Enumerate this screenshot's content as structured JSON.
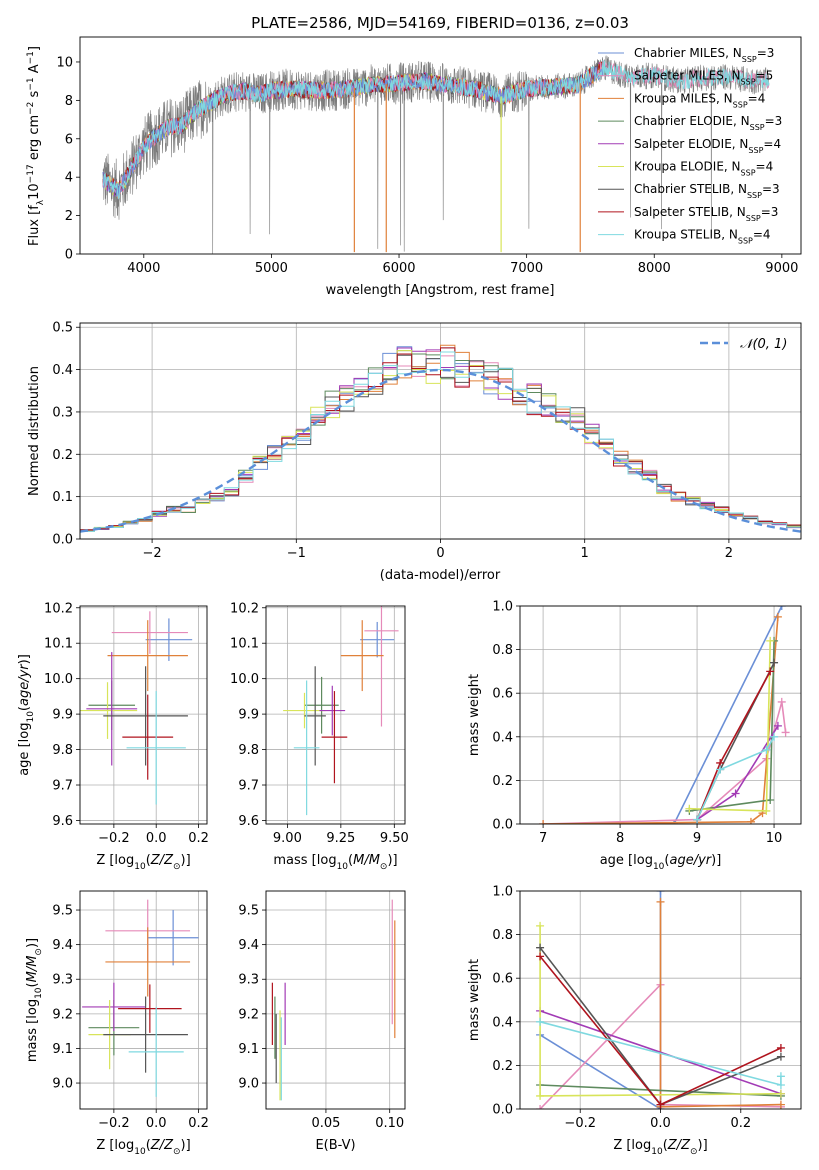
{
  "title": "PLATE=2586, MJD=54169, FIBERID=0136, z=0.03",
  "colors": {
    "chabrier_miles": "#6b8fd6",
    "salpeter_miles": "#e58ab9",
    "kroupa_miles": "#e0813a",
    "chabrier_elodie": "#5e8a5e",
    "salpeter_elodie": "#a23bb5",
    "kroupa_elodie": "#d8e45a",
    "chabrier_stelib": "#555555",
    "salpeter_stelib": "#b0141e",
    "kroupa_stelib": "#7fd9e0",
    "normal_curve": "#5b8fd9"
  },
  "chart_data": [
    {
      "type": "line",
      "xlabel": "wavelength [Angstrom, rest frame]",
      "ylabel": "Flux [f_λ10^-17 erg cm^-2 s^-1 A^-1]",
      "xlim": [
        3500,
        9150
      ],
      "ylim": [
        0,
        11.3
      ],
      "xticks": [
        4000,
        5000,
        6000,
        7000,
        8000,
        9000
      ],
      "yticks": [
        0,
        2,
        4,
        6,
        8,
        10
      ],
      "grid": false,
      "legend_position": "top-right",
      "legend": [
        {
          "label": "Chabrier MILES, N",
          "sub": "SSP",
          "suffix": "=3",
          "color_key": "chabrier_miles"
        },
        {
          "label": "Salpeter MILES, N",
          "sub": "SSP",
          "suffix": "=5",
          "color_key": "salpeter_miles"
        },
        {
          "label": "Kroupa MILES, N",
          "sub": "SSP",
          "suffix": "=4",
          "color_key": "kroupa_miles"
        },
        {
          "label": "Chabrier ELODIE, N",
          "sub": "SSP",
          "suffix": "=3",
          "color_key": "chabrier_elodie"
        },
        {
          "label": "Salpeter ELODIE, N",
          "sub": "SSP",
          "suffix": "=4",
          "color_key": "salpeter_elodie"
        },
        {
          "label": "Kroupa ELODIE, N",
          "sub": "SSP",
          "suffix": "=4",
          "color_key": "kroupa_elodie"
        },
        {
          "label": "Chabrier STELIB, N",
          "sub": "SSP",
          "suffix": "=3",
          "color_key": "chabrier_stelib"
        },
        {
          "label": "Salpeter STELIB, N",
          "sub": "SSP",
          "suffix": "=3",
          "color_key": "salpeter_stelib"
        },
        {
          "label": "Kroupa STELIB, N",
          "sub": "SSP",
          "suffix": "=4",
          "color_key": "kroupa_stelib"
        }
      ],
      "continuum": [
        [
          3680,
          3.9
        ],
        [
          3800,
          3.3
        ],
        [
          3900,
          4.4
        ],
        [
          4000,
          5.6
        ],
        [
          4100,
          6.2
        ],
        [
          4200,
          6.6
        ],
        [
          4300,
          6.7
        ],
        [
          4400,
          7.4
        ],
        [
          4500,
          7.8
        ],
        [
          4600,
          8.2
        ],
        [
          4700,
          8.4
        ],
        [
          4800,
          8.5
        ],
        [
          4900,
          8.3
        ],
        [
          5000,
          8.5
        ],
        [
          5200,
          8.6
        ],
        [
          5400,
          8.5
        ],
        [
          5600,
          8.6
        ],
        [
          5800,
          8.8
        ],
        [
          6000,
          8.9
        ],
        [
          6200,
          9.0
        ],
        [
          6400,
          8.8
        ],
        [
          6600,
          8.6
        ],
        [
          6800,
          8.2
        ],
        [
          7000,
          8.6
        ],
        [
          7200,
          8.7
        ],
        [
          7400,
          8.8
        ],
        [
          7600,
          9.7
        ],
        [
          7800,
          9.2
        ],
        [
          8000,
          9.3
        ],
        [
          8200,
          9.0
        ],
        [
          8400,
          9.2
        ],
        [
          8600,
          9.2
        ],
        [
          8800,
          9.0
        ],
        [
          8900,
          9.0
        ]
      ],
      "model_range": [
        3680,
        7600
      ]
    },
    {
      "type": "bar",
      "xlabel": "(data-model)/error",
      "ylabel": "Normed distribution",
      "xlim": [
        -2.5,
        2.5
      ],
      "ylim": [
        0,
        0.51
      ],
      "xticks": [
        -2,
        -1,
        0,
        1,
        2
      ],
      "yticks": [
        0.0,
        0.1,
        0.2,
        0.3,
        0.4,
        0.5
      ],
      "grid": true,
      "legend_position": "top-right",
      "legend_label": "𝒩(0, 1)",
      "bin_edges": [
        -2.5,
        -2.4,
        -2.3,
        -2.2,
        -2.1,
        -2.0,
        -1.9,
        -1.8,
        -1.7,
        -1.6,
        -1.5,
        -1.4,
        -1.3,
        -1.2,
        -1.1,
        -1.0,
        -0.9,
        -0.8,
        -0.7,
        -0.6,
        -0.5,
        -0.4,
        -0.3,
        -0.2,
        -0.1,
        0.0,
        0.1,
        0.2,
        0.3,
        0.4,
        0.5,
        0.6,
        0.7,
        0.8,
        0.9,
        1.0,
        1.1,
        1.2,
        1.3,
        1.4,
        1.5,
        1.6,
        1.7,
        1.8,
        1.9,
        2.0,
        2.1,
        2.2,
        2.3,
        2.4,
        2.5
      ],
      "histogram_base": [
        0.02,
        0.025,
        0.03,
        0.04,
        0.045,
        0.06,
        0.07,
        0.07,
        0.09,
        0.1,
        0.11,
        0.15,
        0.18,
        0.2,
        0.22,
        0.25,
        0.3,
        0.32,
        0.33,
        0.35,
        0.38,
        0.41,
        0.42,
        0.41,
        0.41,
        0.42,
        0.4,
        0.4,
        0.38,
        0.37,
        0.34,
        0.33,
        0.32,
        0.3,
        0.29,
        0.25,
        0.22,
        0.19,
        0.17,
        0.15,
        0.12,
        0.1,
        0.09,
        0.08,
        0.07,
        0.06,
        0.05,
        0.04,
        0.035,
        0.03
      ],
      "normal_curve": {
        "mean": 0,
        "sigma": 1
      }
    },
    {
      "type": "scatter",
      "xlabel": "Z [log10(Z/Z⊙)]",
      "ylabel": "age  [log10(age/yr)]",
      "xlim": [
        -0.36,
        0.24
      ],
      "ylim": [
        9.59,
        10.205
      ],
      "xticks": [
        -0.2,
        0.0,
        0.2
      ],
      "xticklabels": [
        "−0.2",
        "0.0",
        "0.2"
      ],
      "yticks": [
        9.6,
        9.7,
        9.8,
        9.9,
        10.0,
        10.1,
        10.2
      ],
      "grid": true,
      "errorbars": [
        {
          "x": 0.06,
          "xerr": 0.11,
          "y": 10.11,
          "yerr": 0.06,
          "color_key": "chabrier_miles"
        },
        {
          "x": -0.03,
          "xerr": 0.18,
          "y": 10.13,
          "yerr": 0.06,
          "color_key": "salpeter_miles"
        },
        {
          "x": -0.04,
          "xerr": 0.19,
          "y": 10.065,
          "yerr": 0.1,
          "color_key": "kroupa_miles"
        },
        {
          "x": -0.21,
          "xerr": 0.11,
          "y": 9.925,
          "yerr": 0.07,
          "color_key": "chabrier_elodie"
        },
        {
          "x": -0.23,
          "xerr": 0.14,
          "y": 9.91,
          "yerr": 0.08,
          "color_key": "kroupa_elodie"
        },
        {
          "x": -0.21,
          "xerr": 0.12,
          "y": 9.915,
          "yerr": 0.16,
          "color_key": "salpeter_elodie"
        },
        {
          "x": -0.05,
          "xerr": 0.2,
          "y": 9.895,
          "yerr": 0.14,
          "color_key": "chabrier_stelib"
        },
        {
          "x": -0.04,
          "xerr": 0.12,
          "y": 9.835,
          "yerr": 0.12,
          "color_key": "salpeter_stelib"
        },
        {
          "x": 0.0,
          "xerr": 0.14,
          "y": 9.805,
          "yerr": 0.16,
          "color_key": "kroupa_stelib"
        }
      ]
    },
    {
      "type": "scatter",
      "xlabel": "mass [log10(M/M⊙)]",
      "ylabel": "",
      "xlim": [
        8.9,
        9.55
      ],
      "ylim": [
        9.59,
        10.205
      ],
      "xticks": [
        9.0,
        9.25,
        9.5
      ],
      "xticklabels": [
        "9.00",
        "9.25",
        "9.50"
      ],
      "yticks": [
        9.6,
        9.7,
        9.8,
        9.9,
        10.0,
        10.1,
        10.2
      ],
      "grid": true,
      "errorbars": [
        {
          "x": 9.42,
          "xerr": 0.08,
          "y": 10.11,
          "yerr": 0.05,
          "color_key": "chabrier_miles"
        },
        {
          "x": 9.44,
          "xerr": 0.08,
          "y": 10.135,
          "yerr": 0.27,
          "color_key": "salpeter_miles"
        },
        {
          "x": 9.35,
          "xerr": 0.1,
          "y": 10.065,
          "yerr": 0.1,
          "color_key": "kroupa_miles"
        },
        {
          "x": 9.16,
          "xerr": 0.08,
          "y": 9.925,
          "yerr": 0.08,
          "color_key": "chabrier_elodie"
        },
        {
          "x": 9.08,
          "xerr": 0.1,
          "y": 9.91,
          "yerr": 0.05,
          "color_key": "kroupa_elodie"
        },
        {
          "x": 9.21,
          "xerr": 0.06,
          "y": 9.91,
          "yerr": 0.07,
          "color_key": "salpeter_elodie"
        },
        {
          "x": 9.13,
          "xerr": 0.05,
          "y": 9.895,
          "yerr": 0.14,
          "color_key": "chabrier_stelib"
        },
        {
          "x": 9.22,
          "xerr": 0.06,
          "y": 9.835,
          "yerr": 0.13,
          "color_key": "salpeter_stelib"
        },
        {
          "x": 9.09,
          "xerr": 0.06,
          "y": 9.805,
          "yerr": 0.19,
          "color_key": "kroupa_stelib"
        }
      ]
    },
    {
      "type": "line",
      "xlabel": "age  [log10(age/yr)]",
      "ylabel": "mass weight",
      "xlim": [
        6.7,
        10.35
      ],
      "ylim": [
        0,
        1
      ],
      "xticks": [
        7,
        8,
        9,
        10
      ],
      "yticks": [
        0.0,
        0.2,
        0.4,
        0.6,
        0.8,
        1.0
      ],
      "grid": true,
      "series": [
        {
          "color_key": "chabrier_miles",
          "points": [
            [
              8.7,
              0.0
            ],
            [
              10.1,
              1.0
            ]
          ]
        },
        {
          "color_key": "salpeter_miles",
          "points": [
            [
              7.0,
              0.0
            ],
            [
              9.0,
              0.02
            ],
            [
              9.9,
              0.3
            ],
            [
              10.1,
              0.56
            ],
            [
              10.15,
              0.42
            ]
          ]
        },
        {
          "color_key": "kroupa_miles",
          "points": [
            [
              7.0,
              0.0
            ],
            [
              9.7,
              0.01
            ],
            [
              9.85,
              0.05
            ],
            [
              10.05,
              0.95
            ]
          ]
        },
        {
          "color_key": "chabrier_elodie",
          "points": [
            [
              8.9,
              0.06
            ],
            [
              9.95,
              0.11
            ],
            [
              10.0,
              0.84
            ]
          ]
        },
        {
          "color_key": "salpeter_elodie",
          "points": [
            [
              9.0,
              0.02
            ],
            [
              9.5,
              0.14
            ],
            [
              10.05,
              0.45
            ]
          ]
        },
        {
          "color_key": "kroupa_elodie",
          "points": [
            [
              8.9,
              0.07
            ],
            [
              9.9,
              0.06
            ],
            [
              9.95,
              0.84
            ]
          ]
        },
        {
          "color_key": "chabrier_stelib",
          "points": [
            [
              9.0,
              0.02
            ],
            [
              9.3,
              0.25
            ],
            [
              10.0,
              0.74
            ]
          ]
        },
        {
          "color_key": "salpeter_stelib",
          "points": [
            [
              9.0,
              0.02
            ],
            [
              9.3,
              0.28
            ],
            [
              9.95,
              0.7
            ]
          ]
        },
        {
          "color_key": "kroupa_stelib",
          "points": [
            [
              9.0,
              0.02
            ],
            [
              9.3,
              0.25
            ],
            [
              9.9,
              0.34
            ],
            [
              10.0,
              0.4
            ]
          ]
        }
      ]
    },
    {
      "type": "scatter",
      "xlabel": "Z [log10(Z/Z⊙)]",
      "ylabel": "mass [log10(M/M⊙)]",
      "xlim": [
        -0.36,
        0.24
      ],
      "ylim": [
        8.925,
        9.555
      ],
      "xticks": [
        -0.2,
        0.0,
        0.2
      ],
      "xticklabels": [
        "−0.2",
        "0.0",
        "0.2"
      ],
      "yticks": [
        9.0,
        9.1,
        9.2,
        9.3,
        9.4,
        9.5
      ],
      "grid": true,
      "errorbars": [
        {
          "x": 0.08,
          "xerr": 0.12,
          "y": 9.42,
          "yerr": 0.08,
          "color_key": "chabrier_miles"
        },
        {
          "x": -0.04,
          "xerr": 0.2,
          "y": 9.44,
          "yerr": 0.09,
          "color_key": "salpeter_miles"
        },
        {
          "x": -0.04,
          "xerr": 0.2,
          "y": 9.35,
          "yerr": 0.1,
          "color_key": "kroupa_miles"
        },
        {
          "x": -0.2,
          "xerr": 0.12,
          "y": 9.16,
          "yerr": 0.08,
          "color_key": "chabrier_elodie"
        },
        {
          "x": -0.2,
          "xerr": 0.15,
          "y": 9.22,
          "yerr": 0.07,
          "color_key": "salpeter_elodie"
        },
        {
          "x": -0.22,
          "xerr": 0.1,
          "y": 9.14,
          "yerr": 0.1,
          "color_key": "kroupa_elodie"
        },
        {
          "x": -0.05,
          "xerr": 0.2,
          "y": 9.14,
          "yerr": 0.11,
          "color_key": "chabrier_stelib"
        },
        {
          "x": -0.03,
          "xerr": 0.15,
          "y": 9.215,
          "yerr": 0.07,
          "color_key": "salpeter_stelib"
        },
        {
          "x": 0.0,
          "xerr": 0.13,
          "y": 9.09,
          "yerr": 0.13,
          "color_key": "kroupa_stelib"
        }
      ]
    },
    {
      "type": "scatter",
      "xlabel": "E(B-V)",
      "ylabel": "",
      "xlim": [
        0.003,
        0.112
      ],
      "ylim": [
        8.925,
        9.555
      ],
      "xticks": [
        0.05,
        0.1
      ],
      "xticklabels": [
        "0.05",
        "0.10"
      ],
      "yticks": [
        9.0,
        9.1,
        9.2,
        9.3,
        9.4,
        9.5
      ],
      "grid": true,
      "errorbars": [
        {
          "x": 0.102,
          "xerr": 0.0,
          "y": 9.35,
          "yerr": 0.18,
          "color_key": "salpeter_miles"
        },
        {
          "x": 0.104,
          "xerr": 0.0,
          "y": 9.3,
          "yerr": 0.17,
          "color_key": "kroupa_miles"
        },
        {
          "x": 0.01,
          "xerr": 0.0,
          "y": 9.16,
          "yerr": 0.09,
          "color_key": "chabrier_elodie"
        },
        {
          "x": 0.018,
          "xerr": 0.0,
          "y": 9.2,
          "yerr": 0.09,
          "color_key": "salpeter_elodie"
        },
        {
          "x": 0.014,
          "xerr": 0.0,
          "y": 9.08,
          "yerr": 0.13,
          "color_key": "kroupa_elodie"
        },
        {
          "x": 0.011,
          "xerr": 0.0,
          "y": 9.1,
          "yerr": 0.1,
          "color_key": "chabrier_stelib"
        },
        {
          "x": 0.008,
          "xerr": 0.0,
          "y": 9.2,
          "yerr": 0.09,
          "color_key": "salpeter_stelib"
        },
        {
          "x": 0.015,
          "xerr": 0.0,
          "y": 9.07,
          "yerr": 0.12,
          "color_key": "kroupa_stelib"
        }
      ]
    },
    {
      "type": "line",
      "xlabel": "Z [log10(Z/Z⊙)]",
      "ylabel": "mass weight",
      "xlim": [
        -0.35,
        0.35
      ],
      "ylim": [
        0,
        1
      ],
      "xticks": [
        -0.2,
        0.0,
        0.2
      ],
      "xticklabels": [
        "−0.2",
        "0.0",
        "0.2"
      ],
      "yticks": [
        0.0,
        0.2,
        0.4,
        0.6,
        0.8,
        1.0
      ],
      "grid": true,
      "series": [
        {
          "color_key": "chabrier_miles",
          "points": [
            [
              -0.3,
              0.34
            ],
            [
              0.0,
              0.0
            ],
            [
              0.0,
              1.0
            ],
            [
              0.0,
              0.02
            ]
          ]
        },
        {
          "color_key": "salpeter_miles",
          "points": [
            [
              -0.3,
              0.0
            ],
            [
              0.0,
              0.57
            ],
            [
              0.0,
              0.02
            ],
            [
              0.3,
              0.01
            ]
          ]
        },
        {
          "color_key": "kroupa_miles",
          "points": [
            [
              0.0,
              0.95
            ],
            [
              0.0,
              0.01
            ],
            [
              0.3,
              0.02
            ]
          ]
        },
        {
          "color_key": "chabrier_elodie",
          "points": [
            [
              -0.3,
              0.11
            ],
            [
              0.3,
              0.06
            ]
          ]
        },
        {
          "color_key": "salpeter_elodie",
          "points": [
            [
              -0.3,
              0.45
            ],
            [
              0.3,
              0.07
            ]
          ]
        },
        {
          "color_key": "kroupa_elodie",
          "points": [
            [
              -0.3,
              0.84
            ],
            [
              -0.3,
              0.06
            ],
            [
              0.3,
              0.07
            ]
          ]
        },
        {
          "color_key": "chabrier_stelib",
          "points": [
            [
              -0.3,
              0.74
            ],
            [
              0.0,
              0.02
            ],
            [
              0.3,
              0.24
            ]
          ]
        },
        {
          "color_key": "salpeter_stelib",
          "points": [
            [
              -0.3,
              0.7
            ],
            [
              0.0,
              0.02
            ],
            [
              0.3,
              0.28
            ]
          ]
        },
        {
          "color_key": "kroupa_stelib",
          "points": [
            [
              -0.3,
              0.4
            ],
            [
              0.3,
              0.11
            ],
            [
              0.3,
              0.15
            ]
          ]
        }
      ]
    }
  ]
}
